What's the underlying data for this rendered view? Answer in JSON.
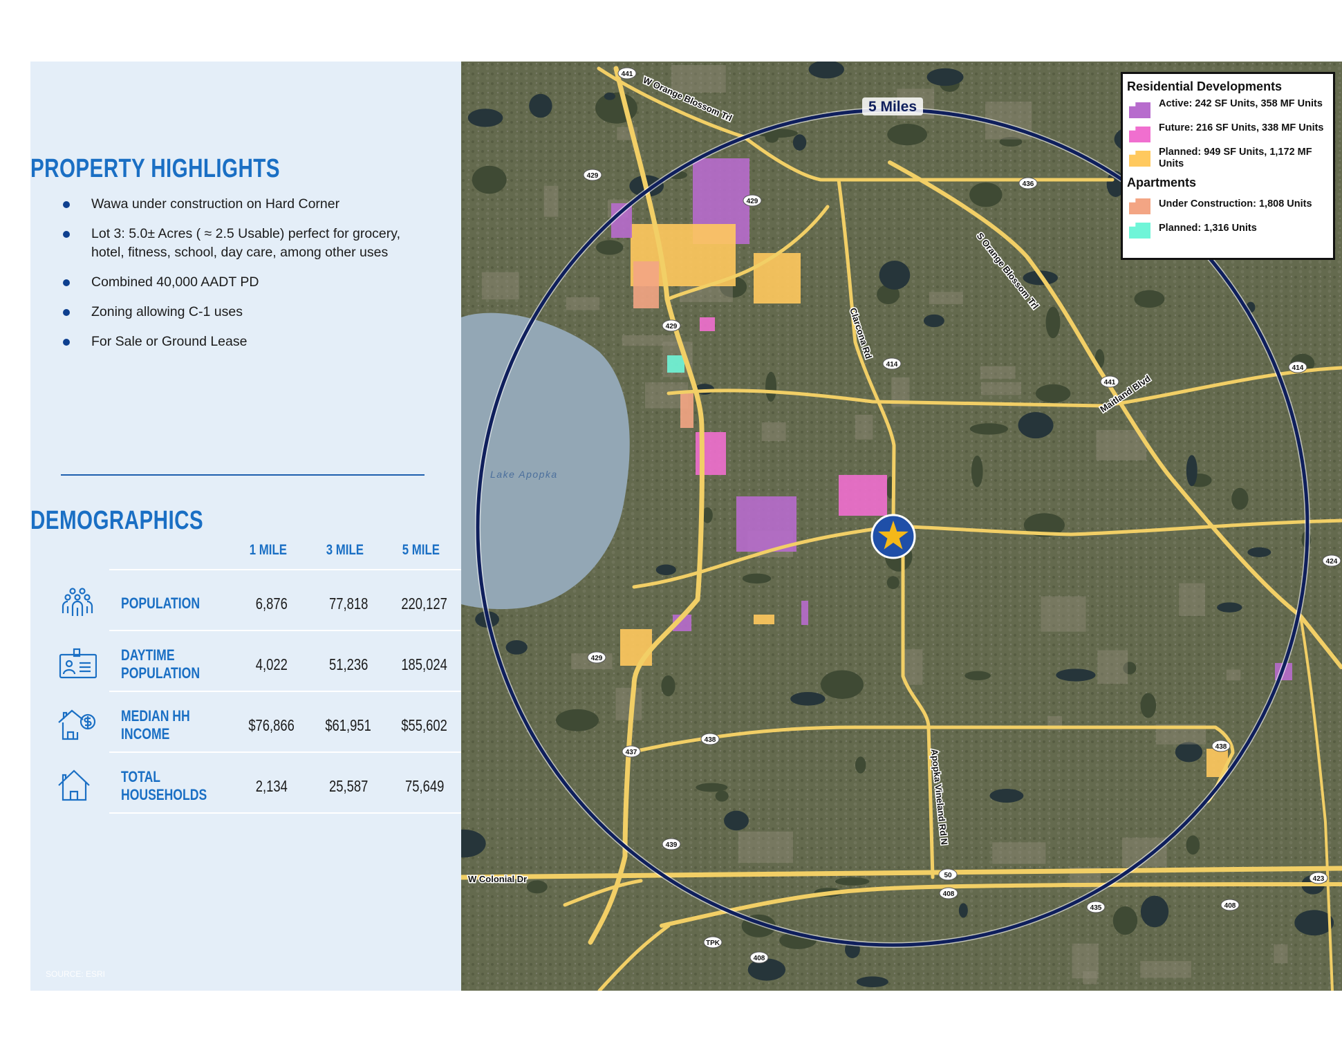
{
  "highlights": {
    "title": "PROPERTY HIGHLIGHTS",
    "items": [
      "Wawa under construction on Hard Corner",
      "Lot 3: 5.0± Acres ( ≈ 2.5 Usable) perfect for grocery, hotel, fitness, school, day care, among other uses",
      "Combined 40,000 AADT PD",
      "Zoning allowing C-1 uses",
      "For Sale or Ground Lease"
    ]
  },
  "demographics": {
    "title": "DEMOGRAPHICS",
    "columns": [
      "1 MILE",
      "3 MILE",
      "5 MILE"
    ],
    "rows": [
      {
        "icon": "people-group-icon",
        "label_1": "POPULATION",
        "label_2": "",
        "values": [
          "6,876",
          "77,818",
          "220,127"
        ]
      },
      {
        "icon": "id-badge-icon",
        "label_1": "DAYTIME",
        "label_2": "POPULATION",
        "values": [
          "4,022",
          "51,236",
          "185,024"
        ]
      },
      {
        "icon": "house-dollar-icon",
        "label_1": "MEDIAN HH",
        "label_2": "INCOME",
        "values": [
          "$76,866",
          "$61,951",
          "$55,602"
        ]
      },
      {
        "icon": "house-icon",
        "label_1": "TOTAL",
        "label_2": "HOUSEHOLDS",
        "values": [
          "2,134",
          "25,587",
          "75,649"
        ]
      }
    ],
    "source": "SOURCE: ESRI"
  },
  "map": {
    "radius_label": "5 Miles",
    "lake_label": "Lake Apopka",
    "road_labels": {
      "w_orange_blossom": "W Orange Blossom Trl",
      "s_orange_blossom": "S Orange Blossom Trl",
      "clarcona": "Clarcona Rd",
      "maitland": "Maitland Blvd",
      "vineland": "Apopka Vineland Rd N",
      "colonial": "W Colonial Dr"
    },
    "shields": [
      "441",
      "429",
      "436",
      "429",
      "429",
      "414",
      "441",
      "414",
      "424",
      "429",
      "438",
      "437",
      "438",
      "439",
      "50",
      "408",
      "435",
      "423",
      "408",
      "TPK",
      "408"
    ],
    "legend": {
      "title_residential": "Residential Developments",
      "active": "Active:  242 SF Units, 358 MF Units",
      "future": "Future:  216 SF Units, 338 MF Units",
      "planned": "Planned:  949 SF Units, 1,172 MF Units",
      "title_apartments": "Apartments",
      "under_construction": "Under Construction:  1,808 Units",
      "apt_planned": "Planned:  1,316 Units"
    },
    "colors": {
      "active": "#b76ccd",
      "future": "#f06fcf",
      "planned": "#ffc95e",
      "under_construction": "#f3a584",
      "apt_planned": "#6ff5d8",
      "road": "#f5d06a",
      "ring": "#0f1f5c",
      "accent": "#1a6fc4"
    }
  }
}
